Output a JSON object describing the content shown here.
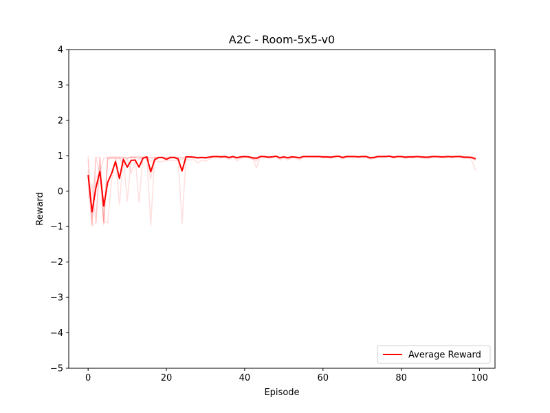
{
  "chart_data": {
    "type": "line",
    "title": "A2C - Room-5x5-v0",
    "xlabel": "Episode",
    "ylabel": "Reward",
    "xlim": [
      -4.95,
      103.95
    ],
    "ylim": [
      -5,
      4
    ],
    "xticks": [
      0,
      20,
      40,
      60,
      80,
      100
    ],
    "yticks": [
      -5,
      -4,
      -3,
      -2,
      -1,
      0,
      1,
      2,
      3,
      4
    ],
    "ytick_labels": [
      "−5",
      "−4",
      "−3",
      "−2",
      "−1",
      "0",
      "1",
      "2",
      "3",
      "4"
    ],
    "grid": false,
    "legend_position": "lower-right",
    "colors": {
      "average": "#ff0000",
      "runs": "#ff0000"
    },
    "series": [
      {
        "name": "Average Reward",
        "values": [
          0.46,
          -0.58,
          0.1,
          0.56,
          -0.42,
          0.25,
          0.5,
          0.84,
          0.36,
          0.9,
          0.68,
          0.87,
          0.88,
          0.68,
          0.93,
          0.97,
          0.55,
          0.89,
          0.95,
          0.95,
          0.9,
          0.95,
          0.95,
          0.91,
          0.57,
          0.97,
          0.97,
          0.96,
          0.94,
          0.95,
          0.94,
          0.96,
          0.98,
          0.98,
          0.97,
          0.98,
          0.95,
          0.98,
          0.94,
          0.97,
          0.98,
          0.97,
          0.94,
          0.93,
          0.98,
          0.98,
          0.96,
          0.97,
          0.99,
          0.94,
          0.97,
          0.94,
          0.97,
          0.96,
          0.94,
          0.98,
          0.98,
          0.98,
          0.98,
          0.98,
          0.97,
          0.97,
          0.96,
          0.98,
          0.99,
          0.95,
          0.98,
          0.98,
          0.98,
          0.97,
          0.98,
          0.98,
          0.94,
          0.95,
          0.98,
          0.98,
          0.98,
          0.99,
          0.96,
          0.98,
          0.98,
          0.96,
          0.97,
          0.97,
          0.98,
          0.97,
          0.96,
          0.96,
          0.98,
          0.98,
          0.97,
          0.97,
          0.98,
          0.97,
          0.98,
          0.98,
          0.96,
          0.96,
          0.95,
          0.91
        ]
      },
      {
        "values": [
          1.0,
          -0.75,
          0.96,
          0.96,
          -0.88,
          0.96,
          0.97,
          0.97,
          0.97,
          0.96,
          0.95,
          0.97,
          0.98,
          0.98,
          0.97,
          0.97,
          0.95,
          0.96,
          0.96,
          0.96,
          0.96,
          0.97,
          0.97,
          0.96,
          0.95,
          0.97,
          0.97,
          0.97,
          0.96,
          0.97,
          0.97,
          0.98,
          0.98,
          0.98,
          0.98,
          0.98,
          0.97,
          0.98,
          0.97,
          0.98,
          0.98,
          0.98,
          0.96,
          0.95,
          0.98,
          0.98,
          0.97,
          0.98,
          0.99,
          0.97,
          0.98,
          0.97,
          0.98,
          0.97,
          0.97,
          0.98,
          0.98,
          0.98,
          0.98,
          0.98,
          0.98,
          0.98,
          0.97,
          0.98,
          0.99,
          0.97,
          0.98,
          0.98,
          0.98,
          0.98,
          0.98,
          0.98,
          0.97,
          0.97,
          0.98,
          0.98,
          0.98,
          0.99,
          0.97,
          0.98,
          0.98,
          0.97,
          0.98,
          0.98,
          0.98,
          0.98,
          0.97,
          0.97,
          0.98,
          0.98,
          0.98,
          0.98,
          0.98,
          0.98,
          0.98,
          0.98,
          0.97,
          0.97,
          0.97,
          0.95
        ]
      },
      {
        "values": [
          0.2,
          -0.95,
          -0.9,
          0.9,
          -0.9,
          0.94,
          0.92,
          0.93,
          -0.38,
          0.92,
          -0.28,
          0.95,
          0.96,
          -0.32,
          0.94,
          0.95,
          0.93,
          0.94,
          0.95,
          0.95,
          0.9,
          0.95,
          0.96,
          0.95,
          0.93,
          0.96,
          0.96,
          0.95,
          0.94,
          0.95,
          0.95,
          0.96,
          0.97,
          0.97,
          0.96,
          0.97,
          0.95,
          0.97,
          0.95,
          0.97,
          0.97,
          0.97,
          0.95,
          0.94,
          0.97,
          0.97,
          0.96,
          0.96,
          0.98,
          0.95,
          0.96,
          0.95,
          0.96,
          0.96,
          0.95,
          0.97,
          0.97,
          0.97,
          0.97,
          0.97,
          0.96,
          0.96,
          0.96,
          0.97,
          0.98,
          0.95,
          0.97,
          0.97,
          0.97,
          0.97,
          0.97,
          0.97,
          0.95,
          0.95,
          0.97,
          0.97,
          0.97,
          0.98,
          0.96,
          0.97,
          0.97,
          0.96,
          0.96,
          0.96,
          0.97,
          0.97,
          0.96,
          0.96,
          0.97,
          0.97,
          0.97,
          0.97,
          0.97,
          0.97,
          0.97,
          0.97,
          0.96,
          0.96,
          0.96,
          0.93
        ]
      },
      {
        "values": [
          0.9,
          -1.0,
          0.4,
          0.5,
          -0.95,
          0.9,
          0.94,
          0.95,
          0.92,
          0.94,
          0.93,
          0.96,
          0.95,
          0.94,
          0.95,
          0.97,
          0.35,
          0.93,
          0.95,
          0.96,
          0.92,
          0.96,
          0.96,
          0.92,
          0.6,
          0.97,
          0.97,
          0.96,
          0.95,
          0.96,
          0.95,
          0.97,
          0.98,
          0.98,
          0.97,
          0.98,
          0.96,
          0.98,
          0.96,
          0.98,
          0.98,
          0.97,
          0.92,
          0.85,
          0.98,
          0.98,
          0.96,
          0.97,
          0.99,
          0.95,
          0.97,
          0.95,
          0.97,
          0.96,
          0.95,
          0.98,
          0.98,
          0.98,
          0.98,
          0.98,
          0.97,
          0.97,
          0.97,
          0.98,
          0.99,
          0.96,
          0.98,
          0.98,
          0.98,
          0.97,
          0.98,
          0.98,
          0.95,
          0.96,
          0.98,
          0.98,
          0.98,
          0.99,
          0.97,
          0.98,
          0.98,
          0.97,
          0.97,
          0.97,
          0.98,
          0.97,
          0.97,
          0.97,
          0.98,
          0.98,
          0.97,
          0.97,
          0.98,
          0.97,
          0.98,
          0.98,
          0.97,
          0.97,
          0.96,
          0.93
        ]
      },
      {
        "values": [
          -0.2,
          0.2,
          -0.88,
          0.95,
          -0.85,
          -0.9,
          0.3,
          0.9,
          0.94,
          0.95,
          0.92,
          0.96,
          0.95,
          0.95,
          0.96,
          0.97,
          -0.96,
          0.95,
          0.96,
          0.96,
          0.94,
          0.96,
          0.96,
          0.93,
          -0.92,
          0.97,
          0.97,
          0.96,
          0.95,
          0.96,
          0.95,
          0.97,
          0.98,
          0.98,
          0.97,
          0.98,
          0.95,
          0.98,
          0.95,
          0.97,
          0.98,
          0.97,
          0.96,
          0.65,
          0.98,
          0.98,
          0.96,
          0.97,
          0.99,
          0.95,
          0.97,
          0.95,
          0.97,
          0.96,
          0.95,
          0.98,
          0.98,
          0.98,
          0.98,
          0.98,
          0.97,
          0.97,
          0.97,
          0.98,
          0.99,
          0.96,
          0.98,
          0.98,
          0.98,
          0.97,
          0.98,
          0.98,
          0.95,
          0.96,
          0.98,
          0.98,
          0.98,
          0.99,
          0.97,
          0.98,
          0.98,
          0.97,
          0.97,
          0.97,
          0.98,
          0.97,
          0.97,
          0.97,
          0.98,
          0.98,
          0.97,
          0.97,
          0.98,
          0.97,
          0.98,
          0.98,
          0.96,
          0.96,
          0.88,
          0.58
        ]
      },
      {
        "values": [
          0.6,
          -0.9,
          0.95,
          0.5,
          0.94,
          0.95,
          0.95,
          0.93,
          0.95,
          0.72,
          0.92,
          0.5,
          0.82,
          0.92,
          0.92,
          0.97,
          0.85,
          0.86,
          0.84,
          0.84,
          0.86,
          0.88,
          0.87,
          0.87,
          0.9,
          0.9,
          0.88,
          0.9,
          0.8,
          0.88,
          0.85,
          0.9,
          0.96,
          0.96,
          0.95,
          0.95,
          0.9,
          0.96,
          0.86,
          0.92,
          0.96,
          0.95,
          0.9,
          0.9,
          0.96,
          0.96,
          0.94,
          0.95,
          0.97,
          0.88,
          0.94,
          0.88,
          0.94,
          0.94,
          0.88,
          0.96,
          0.96,
          0.96,
          0.96,
          0.96,
          0.94,
          0.94,
          0.93,
          0.96,
          0.97,
          0.91,
          0.96,
          0.96,
          0.96,
          0.95,
          0.96,
          0.96,
          0.9,
          0.92,
          0.96,
          0.96,
          0.96,
          0.97,
          0.93,
          0.96,
          0.96,
          0.93,
          0.94,
          0.94,
          0.96,
          0.95,
          0.93,
          0.93,
          0.96,
          0.96,
          0.95,
          0.95,
          0.96,
          0.95,
          0.96,
          0.96,
          0.93,
          0.93,
          0.94,
          0.86
        ]
      }
    ]
  }
}
